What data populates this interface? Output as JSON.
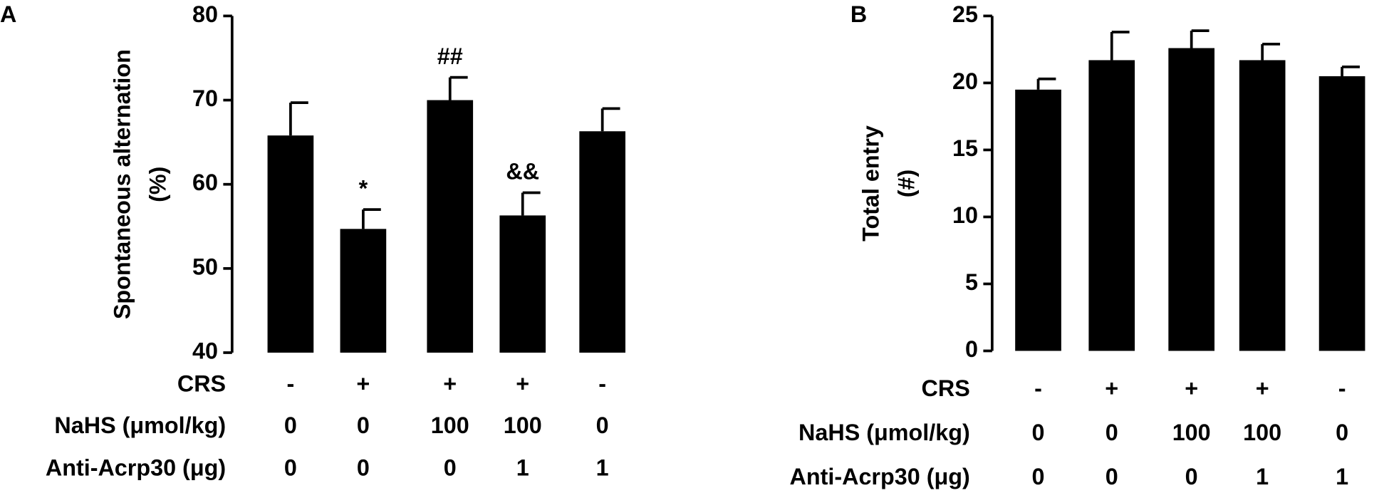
{
  "chart_data": [
    {
      "type": "bar",
      "panel": "A",
      "ylabel": [
        "Spontaneous alternation",
        "(%)"
      ],
      "values": [
        65.8,
        54.7,
        70.0,
        56.3,
        66.3
      ],
      "errors": [
        3.9,
        2.3,
        2.7,
        2.7,
        2.7
      ],
      "annotations": [
        null,
        "*",
        "##",
        "&&",
        null
      ],
      "color": "#000000",
      "ylim": [
        40,
        80
      ],
      "yticks": [
        40,
        50,
        60,
        70,
        80
      ],
      "condition_rows": [
        {
          "label": "CRS",
          "values": [
            "-",
            "+",
            "+",
            "+",
            "-"
          ]
        },
        {
          "label": "NaHS (μmol/kg)",
          "values": [
            0,
            0,
            100,
            100,
            0
          ]
        },
        {
          "label": "Anti-Acrp30 (μg)",
          "values": [
            0,
            0,
            0,
            1,
            1
          ]
        }
      ]
    },
    {
      "type": "bar",
      "panel": "B",
      "ylabel": [
        "Total entry",
        "(#)"
      ],
      "values": [
        19.5,
        21.7,
        22.6,
        21.7,
        20.5
      ],
      "errors": [
        0.8,
        2.1,
        1.3,
        1.2,
        0.7
      ],
      "color": "#000000",
      "ylim": [
        0,
        25
      ],
      "yticks": [
        0,
        5,
        10,
        15,
        20,
        25
      ],
      "condition_rows": [
        {
          "label": "CRS",
          "values": [
            "-",
            "+",
            "+",
            "+",
            "-"
          ]
        },
        {
          "label": "NaHS (μmol/kg)",
          "values": [
            0,
            0,
            100,
            100,
            0
          ]
        },
        {
          "label": "Anti-Acrp30 (μg)",
          "values": [
            0,
            0,
            0,
            1,
            1
          ]
        }
      ]
    }
  ]
}
